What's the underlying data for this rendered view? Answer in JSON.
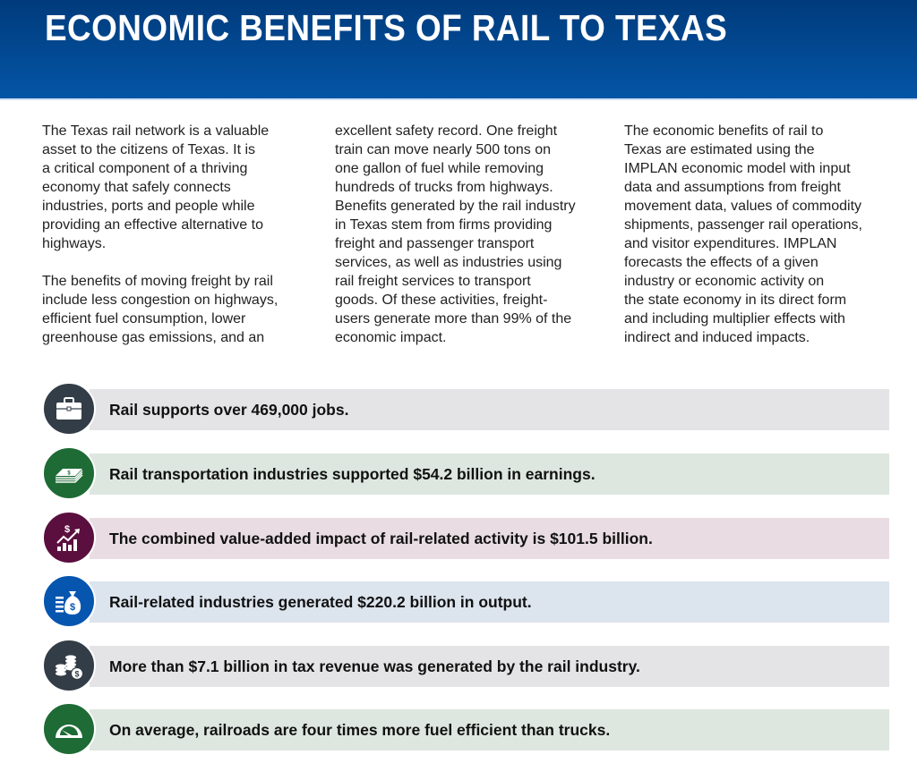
{
  "header": {
    "title": "ECONOMIC BENEFITS OF RAIL TO TEXAS"
  },
  "columns": [
    {
      "paragraphs": [
        [
          "The Texas rail network is a valuable",
          "asset to the citizens of Texas. It is",
          "a critical component of a thriving",
          "economy that safely connects",
          "industries, ports and people while",
          "providing an effective alternative to",
          "highways."
        ],
        [
          "The benefits of moving freight by rail",
          "include less congestion on highways,",
          "efficient fuel consumption, lower",
          "greenhouse gas emissions, and an"
        ]
      ]
    },
    {
      "paragraphs": [
        [
          "excellent safety record. One freight",
          "train can move nearly 500 tons on",
          "one gallon of fuel while removing",
          "hundreds of trucks from highways.",
          "Benefits generated by the rail industry",
          "in Texas stem from firms providing",
          "freight and passenger transport",
          "services, as well as industries using",
          "rail freight services to transport",
          "goods. Of these activities, freight-",
          "users generate more than 99% of the",
          "economic impact."
        ]
      ]
    },
    {
      "paragraphs": [
        [
          "The economic benefits of rail to",
          "Texas are estimated using the",
          "IMPLAN economic model with input",
          "data and assumptions from freight",
          "movement data, values of commodity",
          "shipments, passenger rail operations,",
          "and visitor expenditures. IMPLAN",
          "forecasts the effects of a given",
          "industry or economic activity on",
          "the state economy in its direct form",
          "and including multiplier effects with",
          "indirect and induced impacts."
        ]
      ]
    }
  ],
  "stats": [
    {
      "icon": "briefcase-icon",
      "text": "Rail supports over 469,000 jobs.",
      "circle_color": "#333d47",
      "bar_color": "#e4e4e6"
    },
    {
      "icon": "money-stack-icon",
      "text": "Rail transportation industries supported $54.2 billion in earnings.",
      "circle_color": "#1e6b35",
      "bar_color": "#dde6df"
    },
    {
      "icon": "growth-chart-icon",
      "text": "The combined value-added impact of rail-related activity is $101.5 billion.",
      "circle_color": "#5b0f3e",
      "bar_color": "#e9dde3"
    },
    {
      "icon": "money-bag-icon",
      "text": "Rail-related industries generated $220.2 billion in output.",
      "circle_color": "#0656b0",
      "bar_color": "#dce4ee"
    },
    {
      "icon": "coins-icon",
      "text": "More than $7.1 billion in tax revenue was generated by the rail industry.",
      "circle_color": "#333d47",
      "bar_color": "#e4e4e6"
    },
    {
      "icon": "gauge-icon",
      "text": "On average, railroads are four times more fuel efficient than trucks.",
      "circle_color": "#1e6b35",
      "bar_color": "#dde6df"
    }
  ]
}
